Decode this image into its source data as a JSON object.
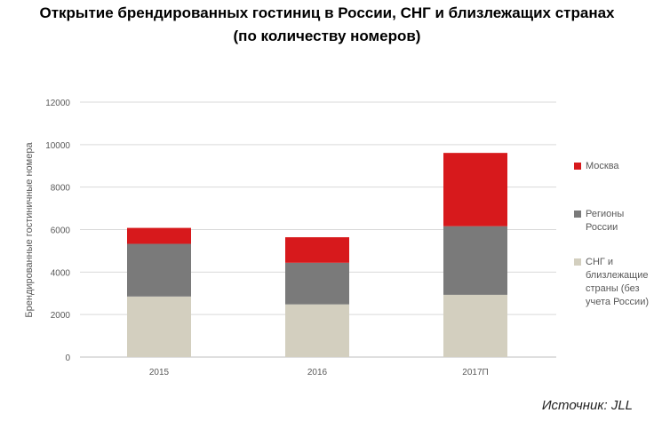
{
  "title_line1": "Открытие брендированных гостиниц в России, СНГ и близлежащих странах",
  "title_line2": "(по количеству номеров)",
  "source": "Источник: JLL",
  "chart_data": {
    "type": "bar",
    "stacked": true,
    "categories": [
      "2015",
      "2016",
      "2017П"
    ],
    "ylabel": "Брендированные гостиничные номера",
    "xlabel": "",
    "ylim": [
      0,
      12000
    ],
    "yticks": [
      0,
      2000,
      4000,
      6000,
      8000,
      10000,
      12000
    ],
    "grid": true,
    "legend_position": "right",
    "series": [
      {
        "name": "СНГ и близлежащие страны (без учета России)",
        "color": "#d3cfbf",
        "values": [
          2850,
          2480,
          2930
        ]
      },
      {
        "name": "Регионы России",
        "color": "#7a7a7a",
        "values": [
          2480,
          1960,
          3230
        ]
      },
      {
        "name": "Москва",
        "color": "#d7191c",
        "values": [
          750,
          1200,
          3450
        ]
      }
    ]
  }
}
